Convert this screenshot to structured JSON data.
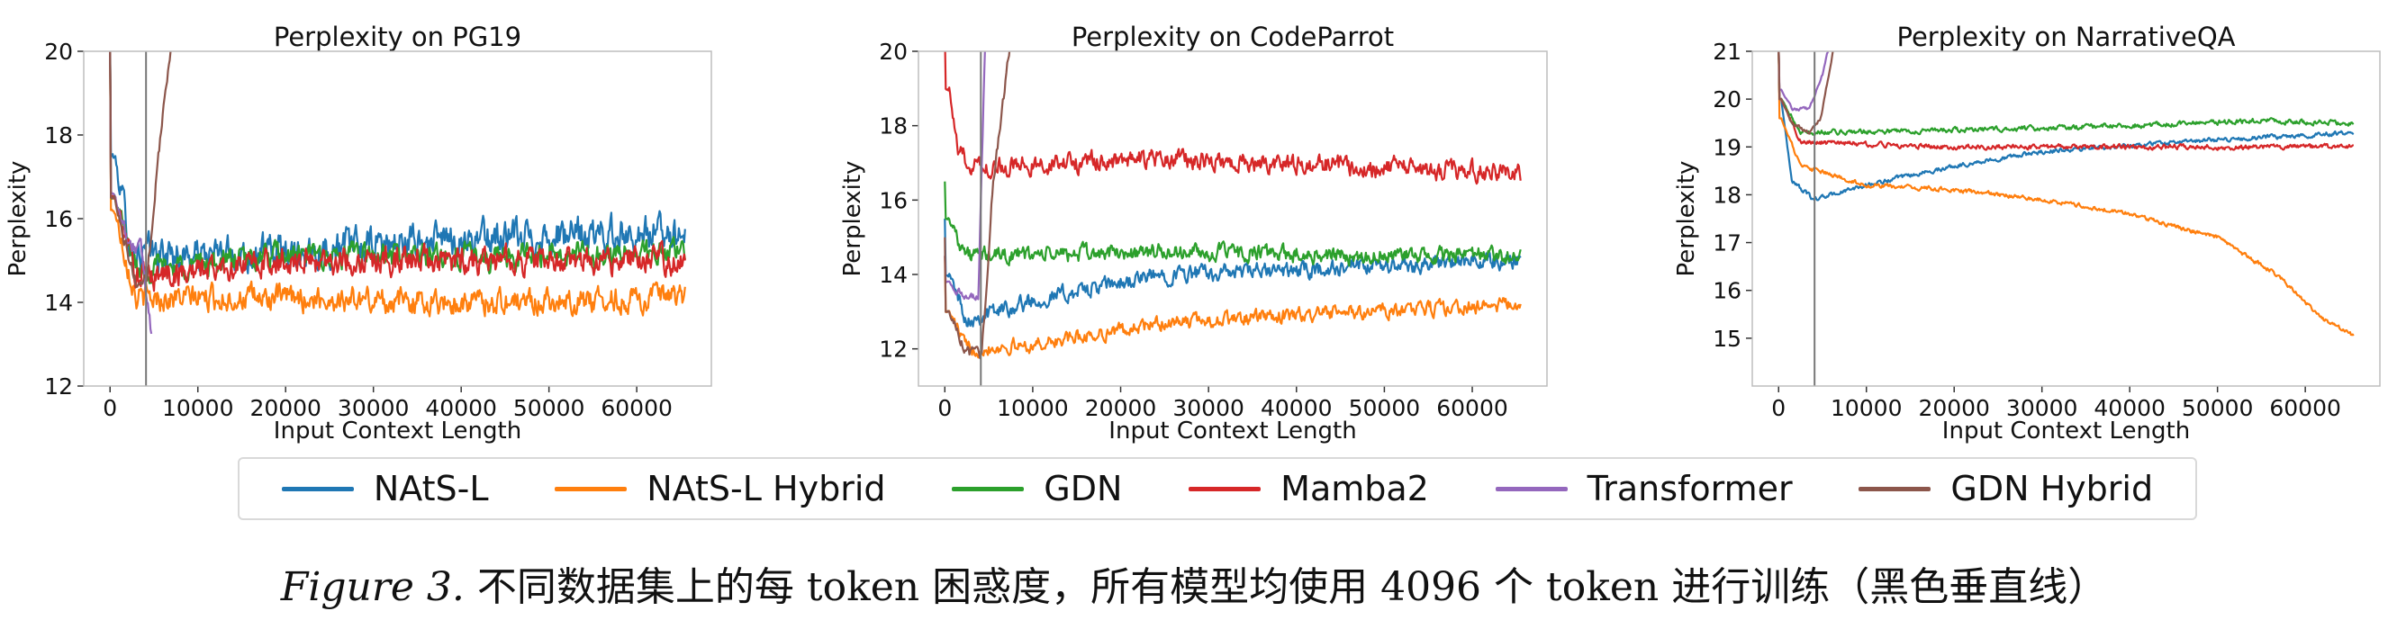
{
  "chart_data": [
    {
      "type": "line",
      "title": "Perplexity on PG19",
      "xlabel": "Input Context Length",
      "ylabel": "Perplexity",
      "xlim": [
        -3000,
        68500
      ],
      "ylim": [
        12,
        20
      ],
      "xticks": [
        "0",
        "10000",
        "20000",
        "30000",
        "40000",
        "50000",
        "60000"
      ],
      "yticks": [
        "12",
        "14",
        "16",
        "18",
        "20"
      ],
      "training_length_marker": 4096,
      "series": [
        {
          "name": "NAtS-L",
          "color": "#1f77b4",
          "start": 20.5,
          "knots": [
            [
              500,
              17.5
            ],
            [
              2500,
              15.2
            ],
            [
              10000,
              15.1
            ],
            [
              25000,
              15.3
            ],
            [
              40000,
              15.5
            ],
            [
              55000,
              15.6
            ],
            [
              65536,
              15.7
            ]
          ],
          "noise": 0.55
        },
        {
          "name": "NAtS-L Hybrid",
          "color": "#ff7f0e",
          "start": 20.5,
          "knots": [
            [
              500,
              16.2
            ],
            [
              3000,
              14.1
            ],
            [
              20000,
              14.1
            ],
            [
              40000,
              14.0
            ],
            [
              65536,
              14.1
            ]
          ],
          "noise": 0.4
        },
        {
          "name": "GDN",
          "color": "#2ca02c",
          "start": 20.5,
          "knots": [
            [
              500,
              16.5
            ],
            [
              3000,
              14.8
            ],
            [
              20000,
              15.1
            ],
            [
              40000,
              15.1
            ],
            [
              65536,
              15.2
            ]
          ],
          "noise": 0.4
        },
        {
          "name": "Mamba2",
          "color": "#d62728",
          "start": 20.5,
          "knots": [
            [
              500,
              16.5
            ],
            [
              3000,
              14.6
            ],
            [
              20000,
              15.0
            ],
            [
              40000,
              15.0
            ],
            [
              65536,
              15.0
            ]
          ],
          "noise": 0.45
        },
        {
          "name": "Transformer",
          "color": "#9467bd",
          "start": 20.5,
          "knots": [
            [
              500,
              16.6
            ],
            [
              2000,
              15.5
            ],
            [
              3600,
              15.2
            ],
            [
              4700,
              13.3
            ]
          ],
          "noise": 0.3,
          "end": 4700
        },
        {
          "name": "GDN Hybrid",
          "color": "#8c564b",
          "start": 20.5,
          "knots": [
            [
              500,
              16.5
            ],
            [
              3000,
              14.4
            ],
            [
              4200,
              14.6
            ],
            [
              5500,
              17.5
            ],
            [
              7000,
              20.3
            ]
          ],
          "noise": 0.2,
          "end": 7000
        }
      ]
    },
    {
      "type": "line",
      "title": "Perplexity on CodeParrot",
      "xlabel": "Input Context Length",
      "ylabel": "Perplexity",
      "xlim": [
        -3000,
        68500
      ],
      "ylim": [
        11,
        20
      ],
      "xticks": [
        "0",
        "10000",
        "20000",
        "30000",
        "40000",
        "50000",
        "60000"
      ],
      "yticks": [
        "12",
        "14",
        "16",
        "18",
        "20"
      ],
      "training_length_marker": 4096,
      "series": [
        {
          "name": "NAtS-L",
          "color": "#1f77b4",
          "start": 15.5,
          "knots": [
            [
              500,
              14.0
            ],
            [
              2500,
              12.8
            ],
            [
              10000,
              13.3
            ],
            [
              25000,
              14.0
            ],
            [
              40000,
              14.1
            ],
            [
              65536,
              14.4
            ]
          ],
          "noise": 0.3
        },
        {
          "name": "NAtS-L Hybrid",
          "color": "#ff7f0e",
          "start": 14.5,
          "knots": [
            [
              500,
              13.0
            ],
            [
              2500,
              12.0
            ],
            [
              10000,
              12.1
            ],
            [
              25000,
              12.7
            ],
            [
              40000,
              12.9
            ],
            [
              65536,
              13.2
            ]
          ],
          "noise": 0.25
        },
        {
          "name": "GDN",
          "color": "#2ca02c",
          "start": 16.5,
          "knots": [
            [
              500,
              15.5
            ],
            [
              2500,
              14.5
            ],
            [
              25000,
              14.6
            ],
            [
              50000,
              14.5
            ],
            [
              65536,
              14.5
            ]
          ],
          "noise": 0.3
        },
        {
          "name": "Mamba2",
          "color": "#d62728",
          "start": 20.5,
          "knots": [
            [
              500,
              19.0
            ],
            [
              1500,
              17.2
            ],
            [
              4000,
              16.9
            ],
            [
              25000,
              17.1
            ],
            [
              50000,
              16.9
            ],
            [
              65536,
              16.7
            ]
          ],
          "noise": 0.35
        },
        {
          "name": "Transformer",
          "color": "#9467bd",
          "start": 14.5,
          "knots": [
            [
              500,
              13.8
            ],
            [
              2500,
              13.3
            ],
            [
              3800,
              13.4
            ],
            [
              4600,
              20.3
            ]
          ],
          "noise": 0.15,
          "end": 4600
        },
        {
          "name": "GDN Hybrid",
          "color": "#8c564b",
          "start": 15.0,
          "knots": [
            [
              500,
              13.0
            ],
            [
              2500,
              11.9
            ],
            [
              4200,
              11.8
            ],
            [
              5500,
              16.5
            ],
            [
              7500,
              20.3
            ]
          ],
          "noise": 0.2,
          "end": 7500
        }
      ]
    },
    {
      "type": "line",
      "title": "Perplexity on NarrativeQA",
      "xlabel": "Input Context Length",
      "ylabel": "Perplexity",
      "xlim": [
        -3000,
        68500
      ],
      "ylim": [
        14,
        21
      ],
      "xticks": [
        "0",
        "10000",
        "20000",
        "30000",
        "40000",
        "50000",
        "60000"
      ],
      "yticks": [
        "15",
        "16",
        "17",
        "18",
        "19",
        "20",
        "21"
      ],
      "training_length_marker": 4096,
      "series": [
        {
          "name": "NAtS-L",
          "color": "#1f77b4",
          "start": 21.2,
          "knots": [
            [
              300,
              20.0
            ],
            [
              1500,
              18.3
            ],
            [
              4000,
              17.9
            ],
            [
              10000,
              18.2
            ],
            [
              20000,
              18.6
            ],
            [
              30000,
              18.9
            ],
            [
              45000,
              19.1
            ],
            [
              65536,
              19.3
            ]
          ],
          "noise": 0.06
        },
        {
          "name": "NAtS-L Hybrid",
          "color": "#ff7f0e",
          "start": 21.2,
          "knots": [
            [
              300,
              19.6
            ],
            [
              2500,
              18.6
            ],
            [
              10000,
              18.2
            ],
            [
              20000,
              18.1
            ],
            [
              30000,
              17.9
            ],
            [
              40000,
              17.6
            ],
            [
              50000,
              17.1
            ],
            [
              57000,
              16.3
            ],
            [
              62000,
              15.4
            ],
            [
              65536,
              15.05
            ]
          ],
          "noise": 0.06
        },
        {
          "name": "GDN",
          "color": "#2ca02c",
          "start": 21.2,
          "knots": [
            [
              300,
              20.0
            ],
            [
              2500,
              19.3
            ],
            [
              20000,
              19.35
            ],
            [
              40000,
              19.45
            ],
            [
              55000,
              19.55
            ],
            [
              65536,
              19.5
            ]
          ],
          "noise": 0.07
        },
        {
          "name": "Mamba2",
          "color": "#d62728",
          "start": 21.2,
          "knots": [
            [
              300,
              20.0
            ],
            [
              2500,
              19.1
            ],
            [
              20000,
              19.0
            ],
            [
              40000,
              19.0
            ],
            [
              65536,
              19.0
            ]
          ],
          "noise": 0.07
        },
        {
          "name": "Transformer",
          "color": "#9467bd",
          "start": 21.2,
          "knots": [
            [
              300,
              20.2
            ],
            [
              1500,
              19.8
            ],
            [
              3500,
              19.8
            ],
            [
              5000,
              20.5
            ],
            [
              6000,
              21.3
            ]
          ],
          "noise": 0.05,
          "end": 6000
        },
        {
          "name": "GDN Hybrid",
          "color": "#8c564b",
          "start": 21.2,
          "knots": [
            [
              300,
              20.0
            ],
            [
              1500,
              19.5
            ],
            [
              3500,
              19.3
            ],
            [
              4800,
              19.6
            ],
            [
              5800,
              20.6
            ],
            [
              6500,
              21.3
            ]
          ],
          "noise": 0.05,
          "end": 6500
        }
      ]
    }
  ],
  "legend": [
    {
      "label": "NAtS-L",
      "color": "#1f77b4"
    },
    {
      "label": "NAtS-L Hybrid",
      "color": "#ff7f0e"
    },
    {
      "label": "GDN",
      "color": "#2ca02c"
    },
    {
      "label": "Mamba2",
      "color": "#d62728"
    },
    {
      "label": "Transformer",
      "color": "#9467bd"
    },
    {
      "label": "GDN Hybrid",
      "color": "#8c564b"
    }
  ],
  "caption": {
    "figure_label": "Figure 3.",
    "text": "不同数据集上的每 token 困惑度，所有模型均使用 4096 个 token 进行训练（黑色垂直线）"
  }
}
